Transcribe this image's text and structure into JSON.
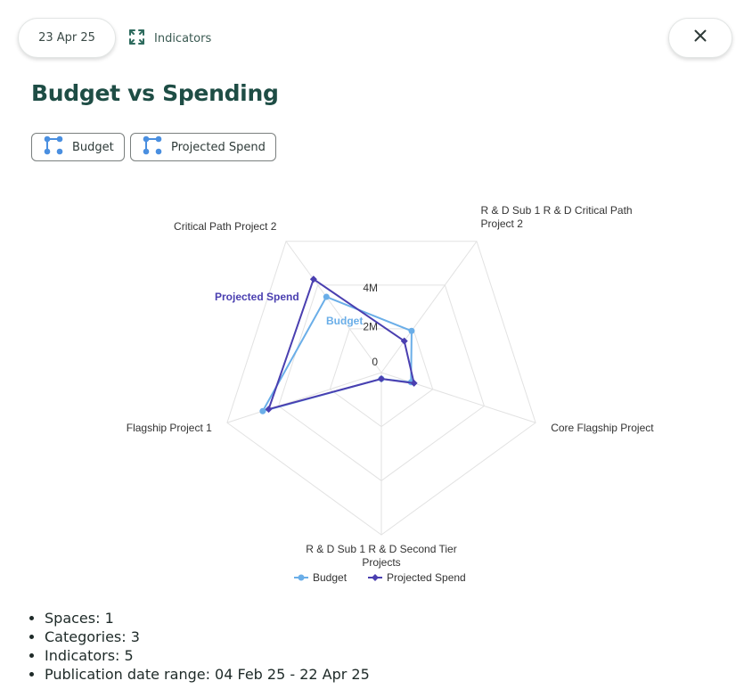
{
  "header": {
    "date": "23 Apr 25",
    "indicators_link": "Indicators"
  },
  "title": "Budget vs Spending",
  "chips": [
    {
      "label": "Budget"
    },
    {
      "label": "Projected Spend"
    }
  ],
  "chart_data": {
    "type": "radar",
    "axes": [
      [
        "R & D Sub 1 R & D Critical Path",
        "Project 2"
      ],
      [
        "Core Flagship Project"
      ],
      [
        "R & D Sub 1 R & D Second Tier",
        "Projects"
      ],
      [
        "Flagship Project 1"
      ],
      [
        "Critical Path Project 2"
      ]
    ],
    "radial_ticks": [
      "0",
      "2M",
      "4M"
    ],
    "radial_tick_values": [
      0,
      2000000,
      4000000
    ],
    "rmax": 5200000,
    "series": [
      {
        "name": "Budget",
        "color": "#6aaee8",
        "marker": "circle",
        "values": [
          1650000,
          1000000,
          200000,
          4000000,
          3000000
        ]
      },
      {
        "name": "Projected Spend",
        "color": "#4a3fb0",
        "marker": "diamond",
        "values": [
          1250000,
          1100000,
          200000,
          3800000,
          3700000
        ]
      }
    ],
    "legend_position": "bottom",
    "grid": true
  },
  "summary": [
    "Spaces: 1",
    "Categories: 3",
    "Indicators: 5",
    "Publication date range: 04 Feb 25 - 22 Apr 25"
  ],
  "colors": {
    "title": "#1e4d45",
    "accent": "#2e6b5e",
    "budget": "#6aaee8",
    "projected": "#4a3fb0"
  }
}
